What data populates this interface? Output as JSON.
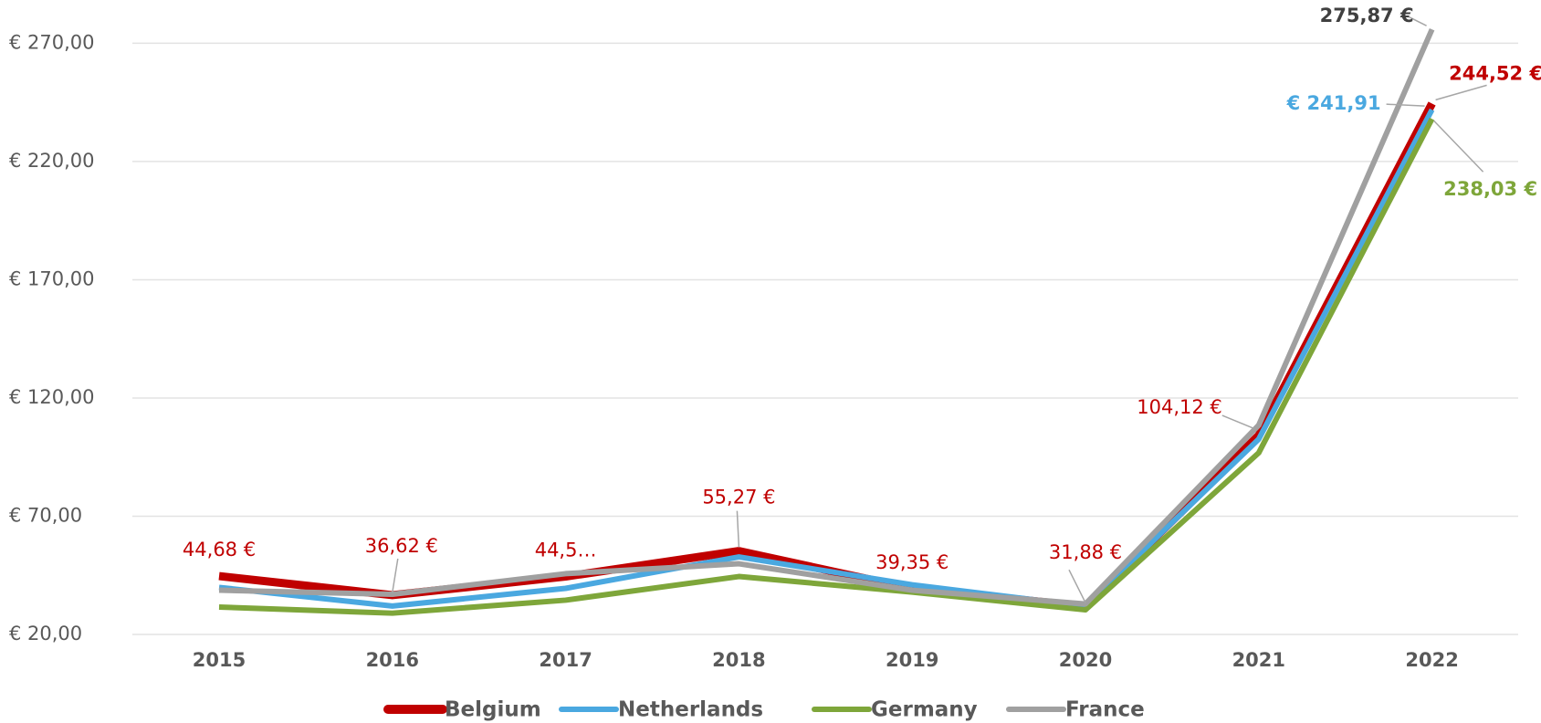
{
  "chart_data": {
    "type": "line",
    "categories": [
      "2015",
      "2016",
      "2017",
      "2018",
      "2019",
      "2020",
      "2021",
      "2022"
    ],
    "ylim": [
      20,
      280
    ],
    "yticks": [
      {
        "value": 20,
        "label": "€ 20,00"
      },
      {
        "value": 70,
        "label": "€ 70,00"
      },
      {
        "value": 120,
        "label": "€ 120,00"
      },
      {
        "value": 170,
        "label": "€ 170,00"
      },
      {
        "value": 220,
        "label": "€ 220,00"
      },
      {
        "value": 270,
        "label": "€ 270,00"
      }
    ],
    "grid": true,
    "legend": "bottom",
    "series": [
      {
        "name": "Belgium",
        "color": "#c00000",
        "values": [
          44.68,
          36.62,
          44.5,
          55.27,
          39.35,
          31.88,
          104.12,
          244.52
        ],
        "value_labels": [
          "44,68 €",
          "36,62 €",
          "44,5…",
          "55,27 €",
          "39,35 €",
          "31,88 €",
          "104,12 €",
          "244,52 €"
        ]
      },
      {
        "name": "Netherlands",
        "color": "#4aa8e0",
        "values": [
          39.9,
          32,
          39.5,
          52.8,
          41,
          32,
          102.6,
          241.91
        ],
        "value_labels": [
          null,
          null,
          null,
          null,
          null,
          null,
          null,
          "€ 241,91"
        ]
      },
      {
        "name": "Germany",
        "color": "#7ea63a",
        "values": [
          31.6,
          29,
          34.5,
          44.5,
          37.9,
          30.4,
          96.8,
          238.03
        ],
        "value_labels": [
          null,
          null,
          null,
          null,
          null,
          null,
          null,
          "238,03 €"
        ]
      },
      {
        "name": "France",
        "color": "#a0a0a0",
        "values": [
          38.7,
          37,
          45.7,
          49.9,
          38.7,
          32.9,
          108.5,
          275.87
        ],
        "value_labels": [
          null,
          null,
          null,
          null,
          null,
          null,
          null,
          "275,87 €"
        ]
      }
    ]
  }
}
